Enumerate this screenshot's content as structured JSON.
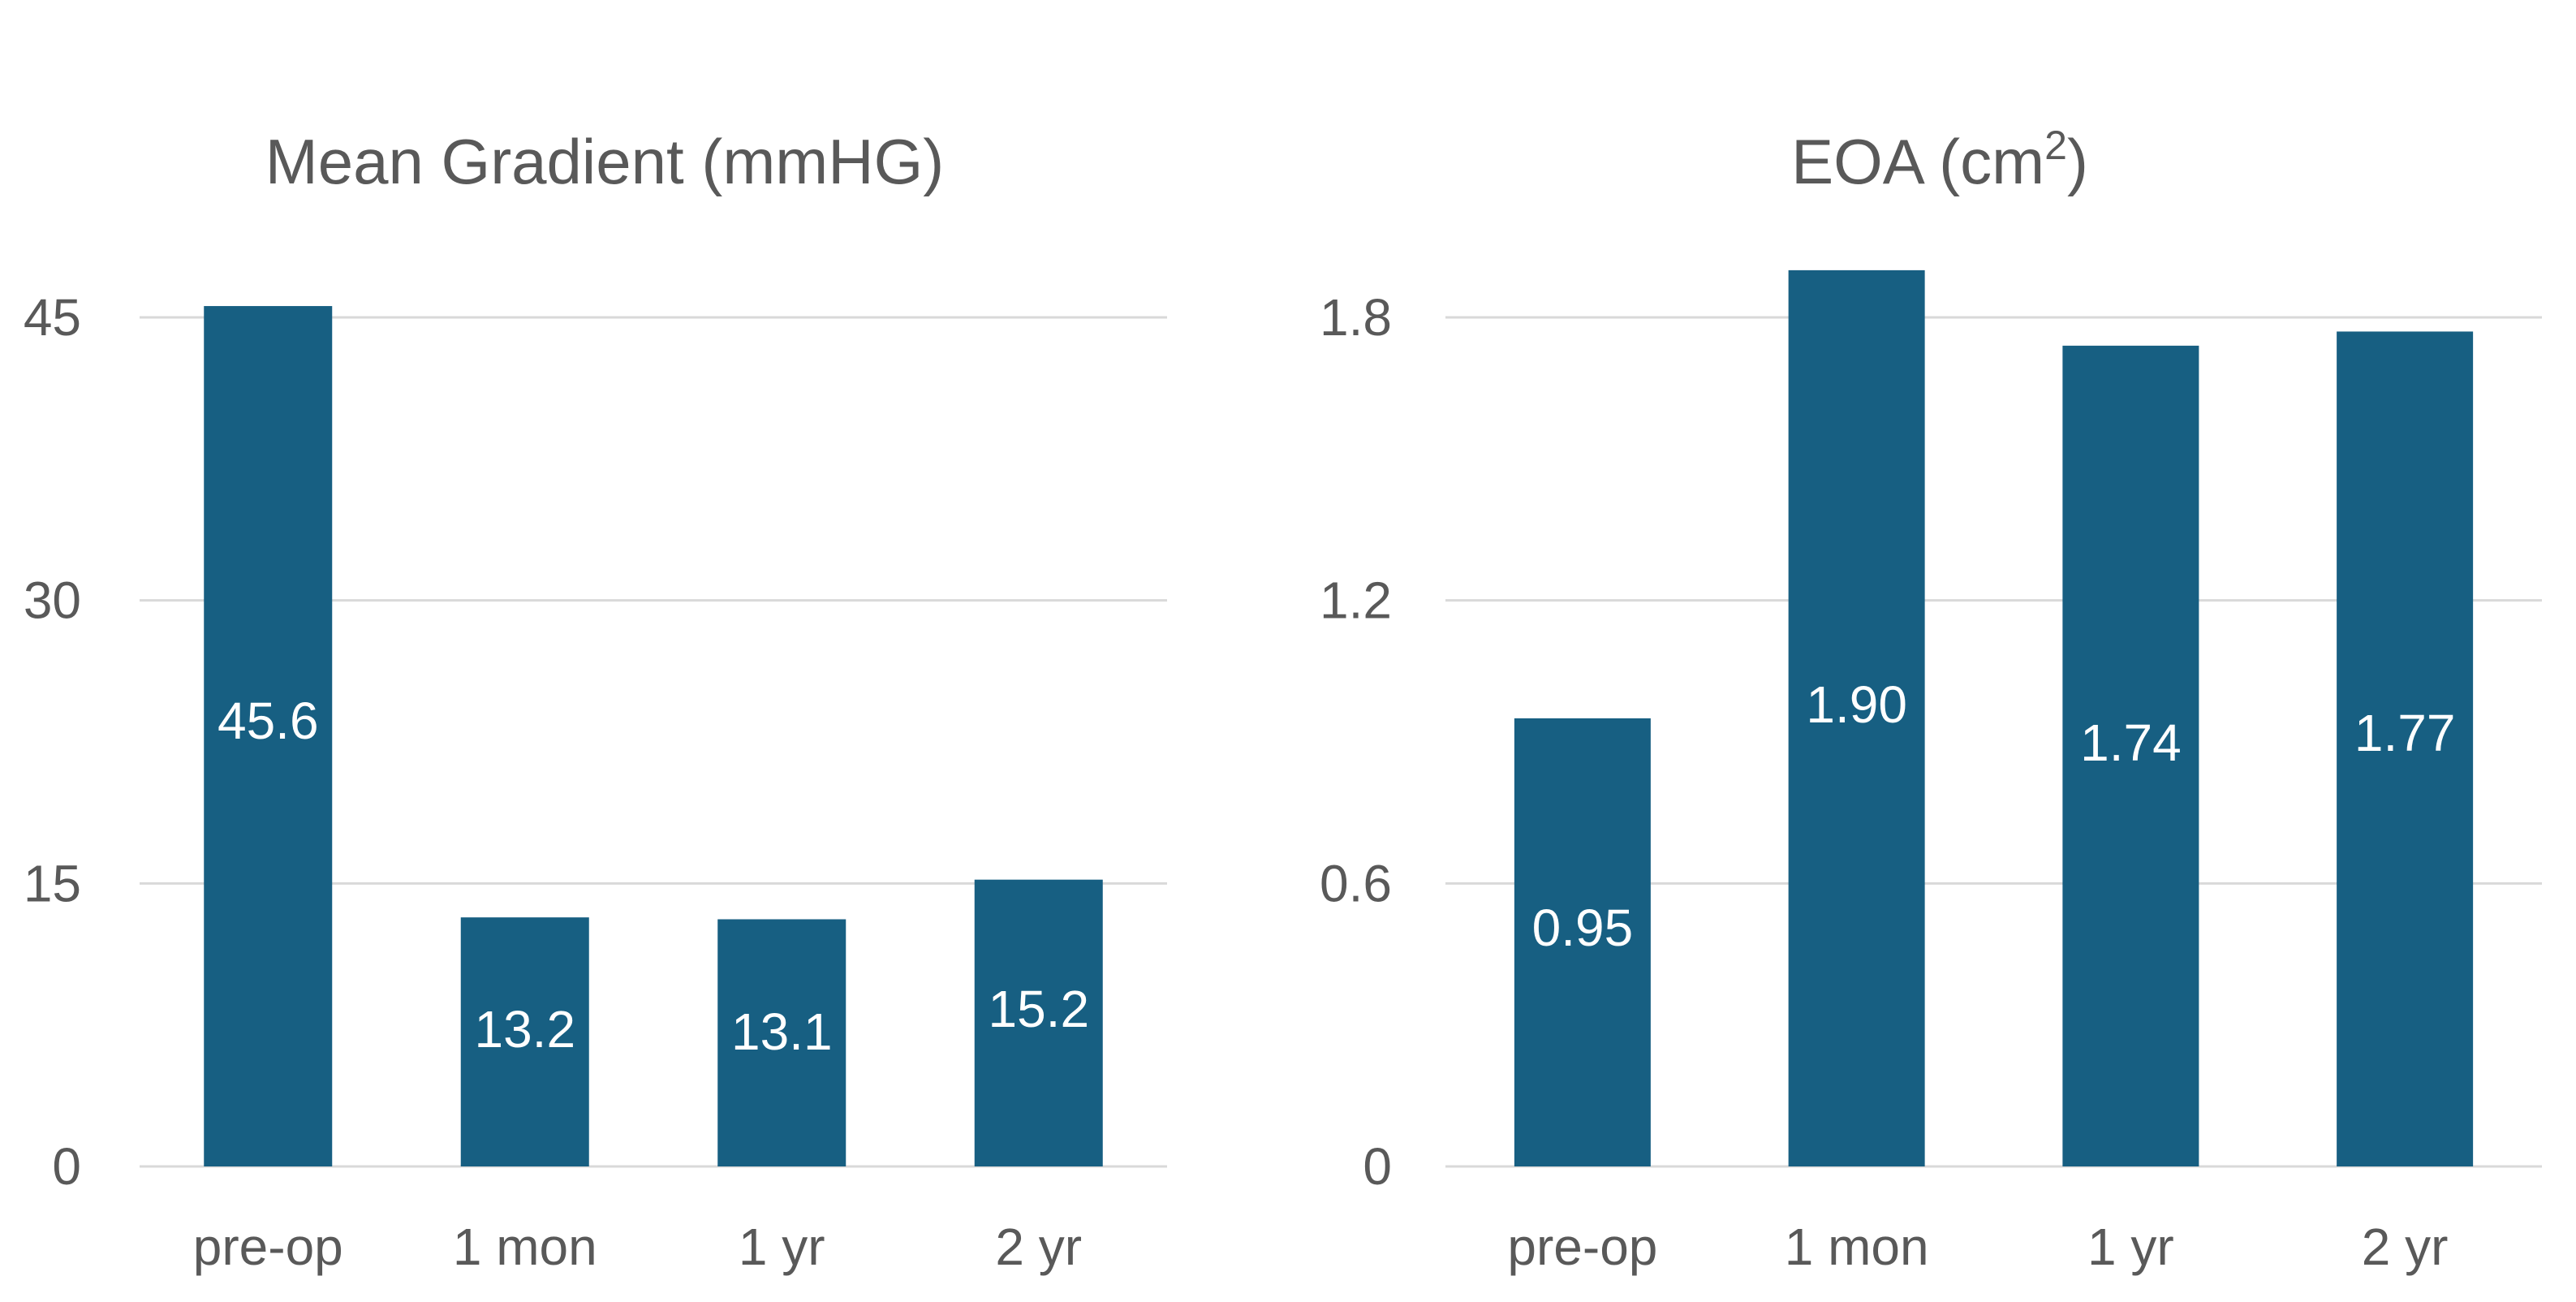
{
  "chart_data": [
    {
      "type": "bar",
      "title": "Mean Gradient (mmHG)",
      "title_superscript": "",
      "categories": [
        "pre-op",
        "1 mon",
        "1 yr",
        "2 yr"
      ],
      "values": [
        45.6,
        13.2,
        13.1,
        15.2
      ],
      "data_labels": [
        "45.6",
        "13.2",
        "13.1",
        "15.2"
      ],
      "ylim": [
        0,
        45
      ],
      "yticks": [
        "0",
        "15",
        "30",
        "45"
      ],
      "ytick_values": [
        0,
        15,
        30,
        45
      ],
      "grid": true,
      "bar_color": "#175f82"
    },
    {
      "type": "bar",
      "title": "EOA (cm",
      "title_superscript": "2",
      "title_suffix": ")",
      "categories": [
        "pre-op",
        "1 mon",
        "1 yr",
        "2 yr"
      ],
      "values": [
        0.95,
        1.9,
        1.74,
        1.77
      ],
      "data_labels": [
        "0.95",
        "1.90",
        "1.74",
        "1.77"
      ],
      "ylim": [
        0,
        1.8
      ],
      "yticks": [
        "0",
        "0.6",
        "1.2",
        "1.8"
      ],
      "ytick_values": [
        0,
        0.6,
        1.2,
        1.8
      ],
      "grid": true,
      "bar_color": "#175f82"
    }
  ]
}
